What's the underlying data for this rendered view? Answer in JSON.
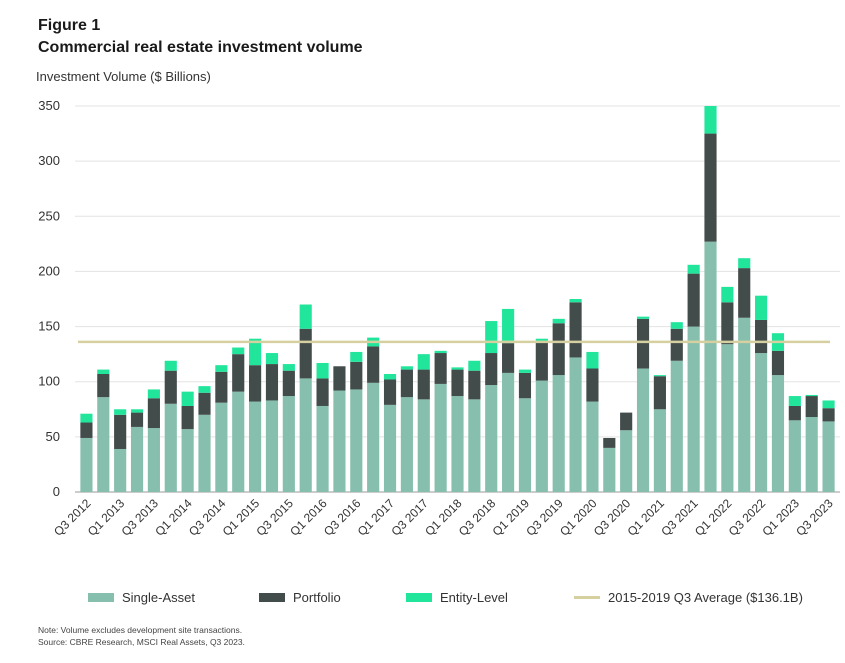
{
  "figure_label": "Figure 1",
  "title": "Commercial real estate investment volume",
  "colors": {
    "single_asset": "#86bfae",
    "portfolio": "#424c4b",
    "entity_level": "#22e59c",
    "average": "#d6d0a0",
    "grid": "#e3e3e3"
  },
  "legend": {
    "single_asset": "Single-Asset",
    "portfolio": "Portfolio",
    "entity_level": "Entity-Level",
    "average": "2015-2019 Q3 Average ($136.1B)"
  },
  "note": "Note: Volume excludes development site transactions.",
  "source": "Source: CBRE Research, MSCI Real Assets, Q3 2023.",
  "chart_data": {
    "type": "bar",
    "stacked": true,
    "ylabel": "Investment Volume ($ Billions)",
    "ylim": [
      0,
      350
    ],
    "yticks": [
      "0",
      "50",
      "100",
      "150",
      "200",
      "250",
      "300",
      "350"
    ],
    "grid": true,
    "legend_position": "bottom",
    "categories": [
      "Q3 2012",
      "Q4 2012",
      "Q1 2013",
      "Q2 2013",
      "Q3 2013",
      "Q4 2013",
      "Q1 2014",
      "Q2 2014",
      "Q3 2014",
      "Q4 2014",
      "Q1 2015",
      "Q2 2015",
      "Q3 2015",
      "Q4 2015",
      "Q1 2016",
      "Q2 2016",
      "Q3 2016",
      "Q4 2016",
      "Q1 2017",
      "Q2 2017",
      "Q3 2017",
      "Q4 2017",
      "Q1 2018",
      "Q2 2018",
      "Q3 2018",
      "Q4 2018",
      "Q1 2019",
      "Q2 2019",
      "Q3 2019",
      "Q4 2019",
      "Q1 2020",
      "Q2 2020",
      "Q3 2020",
      "Q4 2020",
      "Q1 2021",
      "Q2 2021",
      "Q3 2021",
      "Q4 2021",
      "Q1 2022",
      "Q2 2022",
      "Q3 2022",
      "Q4 2022",
      "Q1 2023",
      "Q2 2023",
      "Q3 2023"
    ],
    "tick_labels": [
      "Q3 2012",
      "",
      "Q1 2013",
      "",
      "Q3 2013",
      "",
      "Q1 2014",
      "",
      "Q3 2014",
      "",
      "Q1 2015",
      "",
      "Q3 2015",
      "",
      "Q1 2016",
      "",
      "Q3 2016",
      "",
      "Q1 2017",
      "",
      "Q3 2017",
      "",
      "Q1 2018",
      "",
      "Q3 2018",
      "",
      "Q1 2019",
      "",
      "Q3 2019",
      "",
      "Q1 2020",
      "",
      "Q3 2020",
      "",
      "Q1 2021",
      "",
      "Q3 2021",
      "",
      "Q1 2022",
      "",
      "Q3 2022",
      "",
      "Q1 2023",
      "",
      "Q3 2023"
    ],
    "series": [
      {
        "name": "Single-Asset",
        "values": [
          49,
          86,
          39,
          59,
          58,
          80,
          57,
          70,
          81,
          91,
          82,
          83,
          87,
          103,
          78,
          92,
          93,
          99,
          79,
          86,
          84,
          98,
          87,
          84,
          97,
          108,
          85,
          101,
          106,
          122,
          82,
          40,
          56,
          112,
          75,
          119,
          150,
          227,
          134,
          158,
          126,
          106,
          65,
          68,
          64
        ]
      },
      {
        "name": "Portfolio",
        "values": [
          14,
          21,
          31,
          13,
          27,
          30,
          21,
          20,
          28,
          34,
          33,
          33,
          23,
          45,
          25,
          22,
          25,
          33,
          23,
          25,
          27,
          28,
          24,
          26,
          29,
          27,
          23,
          35,
          47,
          50,
          30,
          9,
          16,
          45,
          30,
          29,
          48,
          98,
          38,
          45,
          30,
          22,
          13,
          19,
          12
        ]
      },
      {
        "name": "Entity-Level",
        "values": [
          8,
          4,
          5,
          3,
          8,
          9,
          13,
          6,
          6,
          6,
          24,
          10,
          6,
          22,
          14,
          0,
          9,
          8,
          5,
          3,
          14,
          2,
          2,
          9,
          29,
          31,
          3,
          3,
          4,
          3,
          15,
          0,
          0,
          2,
          1,
          6,
          8,
          25,
          14,
          9,
          22,
          16,
          9,
          1,
          7
        ]
      }
    ],
    "average_line": {
      "name": "2015-2019 Q3 Average ($136.1B)",
      "value": 136.1
    }
  }
}
